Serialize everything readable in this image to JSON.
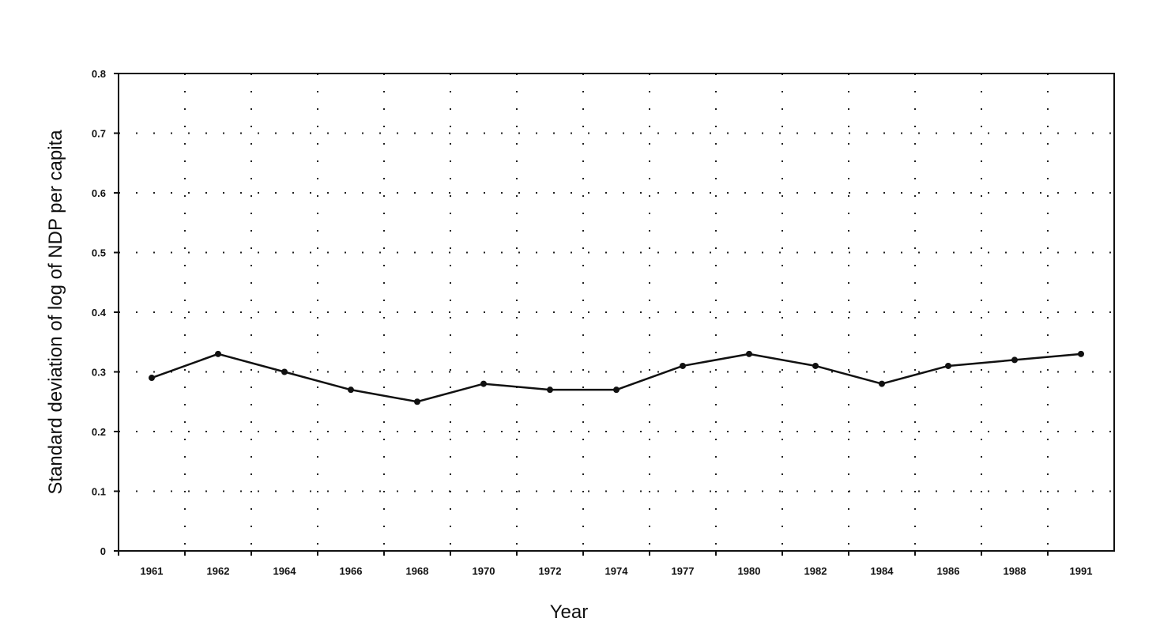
{
  "chart_data": {
    "type": "line",
    "title": "",
    "xlabel": "Year",
    "ylabel": "Standard deviation of log of NDP per capita",
    "categories": [
      "1961",
      "1962",
      "1964",
      "1966",
      "1968",
      "1970",
      "1972",
      "1974",
      "1977",
      "1980",
      "1982",
      "1984",
      "1986",
      "1988",
      "1991"
    ],
    "series": [
      {
        "values": [
          0.29,
          0.33,
          0.3,
          0.27,
          0.25,
          0.28,
          0.27,
          0.27,
          0.31,
          0.33,
          0.31,
          0.28,
          0.31,
          0.32,
          0.33
        ]
      }
    ],
    "ylim": [
      0,
      0.8
    ],
    "yticks": [
      "0",
      "0.1",
      "0.2",
      "0.3",
      "0.4",
      "0.5",
      "0.6",
      "0.7",
      "0.8"
    ],
    "grid": true,
    "legend": "none",
    "colors": {
      "line": "#111111",
      "grid": "#222222",
      "frame": "#111111"
    }
  }
}
